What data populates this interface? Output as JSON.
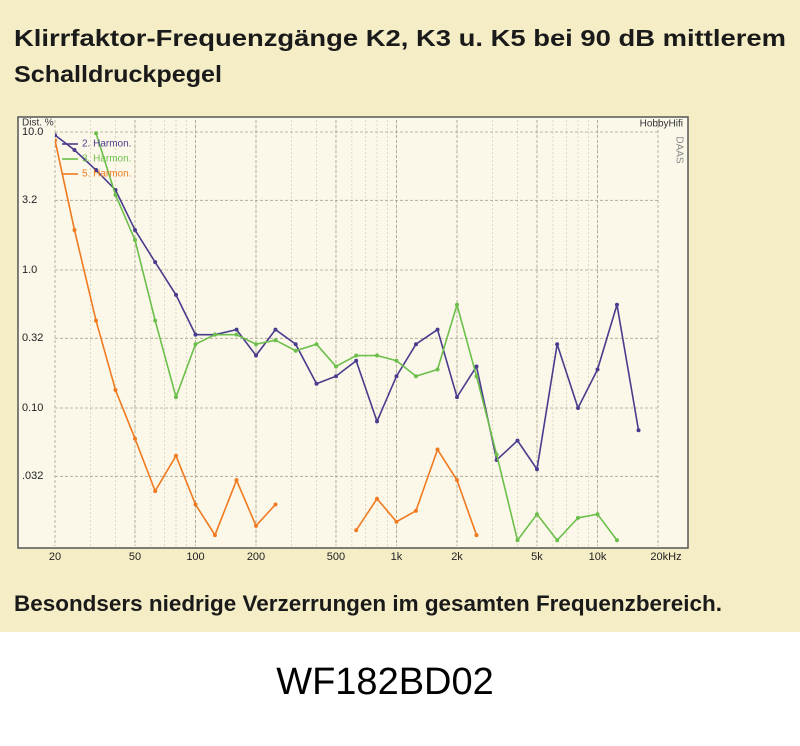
{
  "chart_data": {
    "type": "line",
    "title": "Klirrfaktor-Frequenzgänge K2, K3 u. K5 bei 90 dB mittlerem",
    "title_line2": "Schalldruckpegel",
    "y_label": "Dist. %",
    "annotations": [
      "HobbyHifi",
      "DAAS"
    ],
    "caption": "Besondsers niedrige Verzerrungen im gesamten Frequenzbereich.",
    "footer": "WF182BD02",
    "log_x": true,
    "log_y": true,
    "grid": true,
    "legend": "upper left",
    "xlim": [
      20,
      20000
    ],
    "ylim": [
      0.01,
      10
    ],
    "xticks": [
      20,
      50,
      100,
      200,
      500,
      {
        "value": 1000,
        "label": "1k"
      },
      {
        "value": 2000,
        "label": "2k"
      },
      {
        "value": 5000,
        "label": "5k"
      },
      {
        "value": 10000,
        "label": "10k"
      },
      {
        "value": 20000,
        "label": "20kHz"
      }
    ],
    "yticks": [
      {
        "value": 10,
        "label": "10.0"
      },
      3.2,
      {
        "value": 1,
        "label": "1.0"
      },
      0.32,
      {
        "value": 0.1,
        "label": "0.10"
      },
      {
        "value": 0.032,
        "label": ".032"
      }
    ],
    "x": [
      20,
      25,
      32,
      40,
      50,
      63,
      80,
      100,
      125,
      160,
      200,
      250,
      315,
      400,
      500,
      630,
      800,
      1000,
      1250,
      1600,
      2000,
      2500,
      3150,
      4000,
      5000,
      6300,
      8000,
      10000,
      12500,
      16000,
      20000
    ],
    "series": [
      {
        "name": "2. Harmon.",
        "color": "#4a3c8c",
        "values": [
          9.5,
          7.4,
          5.3,
          3.8,
          1.95,
          1.14,
          0.66,
          0.34,
          0.34,
          0.37,
          0.24,
          0.37,
          0.29,
          0.15,
          0.17,
          0.22,
          0.08,
          0.17,
          0.29,
          0.37,
          0.12,
          0.2,
          0.042,
          0.058,
          0.036,
          0.29,
          0.1,
          0.19,
          0.56,
          0.069,
          null
        ]
      },
      {
        "name": "3. Harmon.",
        "color": "#6cbf4a",
        "values": [
          null,
          null,
          9.8,
          3.5,
          1.65,
          0.43,
          0.12,
          0.29,
          0.34,
          0.34,
          0.29,
          0.31,
          0.26,
          0.29,
          0.2,
          0.24,
          0.24,
          0.22,
          0.17,
          0.19,
          0.56,
          0.17,
          0.046,
          0.011,
          0.017,
          0.011,
          0.016,
          0.017,
          0.011,
          null,
          null
        ]
      },
      {
        "name": "5. Harmon.",
        "color": "#f07a20",
        "values": [
          8.7,
          1.95,
          0.43,
          0.135,
          0.06,
          0.025,
          0.045,
          0.02,
          0.012,
          0.03,
          0.014,
          0.02,
          null,
          null,
          null,
          0.013,
          0.022,
          0.015,
          0.018,
          0.05,
          0.03,
          0.012,
          null,
          null,
          null,
          null,
          null,
          null,
          null,
          null,
          null
        ]
      }
    ]
  }
}
